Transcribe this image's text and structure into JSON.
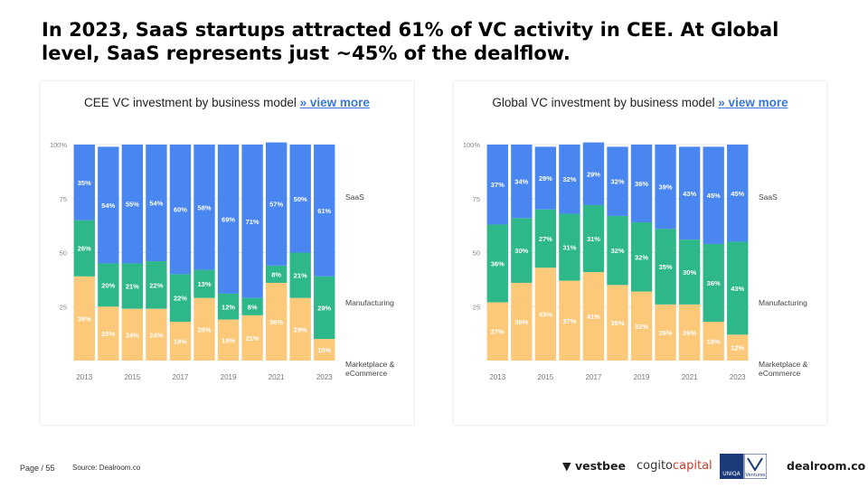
{
  "headline": "In 2023, SaaS startups attracted 61% of VC activity in CEE. At Global level, SaaS represents just ~45% of the dealflow.",
  "colors": {
    "saas": "#4a86f0",
    "manufacturing": "#2eb88a",
    "marketplace": "#fcc97a",
    "link": "#3a78d8"
  },
  "chart_data": [
    {
      "type": "bar",
      "stacked": true,
      "title": "CEE VC investment by business model",
      "link_text": "» view more",
      "categories": [
        "2013",
        "2014",
        "2015",
        "2016",
        "2017",
        "2018",
        "2019",
        "2020",
        "2021",
        "2022",
        "2023"
      ],
      "tick_labels": [
        "2013",
        "",
        "2015",
        "",
        "2017",
        "",
        "2019",
        "",
        "2021",
        "",
        "2023"
      ],
      "y_ticks": [
        "100%",
        "75",
        "50",
        "25"
      ],
      "ylim": [
        0,
        100
      ],
      "series": [
        {
          "name": "Marketplace & eCommerce",
          "values": [
            39,
            25,
            24,
            24,
            18,
            29,
            19,
            21,
            36,
            29,
            10
          ]
        },
        {
          "name": "Manufacturing",
          "values": [
            26,
            20,
            21,
            22,
            22,
            13,
            12,
            8,
            8,
            21,
            29
          ]
        },
        {
          "name": "SaaS",
          "values": [
            35,
            54,
            55,
            54,
            60,
            58,
            69,
            71,
            57,
            50,
            61
          ]
        }
      ],
      "legend": [
        "SaaS",
        "Manufacturing",
        "Marketplace &",
        "eCommerce"
      ]
    },
    {
      "type": "bar",
      "stacked": true,
      "title": "Global VC investment by business model",
      "link_text": "» view more",
      "categories": [
        "2013",
        "2014",
        "2015",
        "2016",
        "2017",
        "2018",
        "2019",
        "2020",
        "2021",
        "2022",
        "2023"
      ],
      "tick_labels": [
        "2013",
        "",
        "2015",
        "",
        "2017",
        "",
        "2019",
        "",
        "2021",
        "",
        "2023"
      ],
      "y_ticks": [
        "100%",
        "75",
        "50",
        "25"
      ],
      "ylim": [
        0,
        100
      ],
      "series": [
        {
          "name": "Marketplace & eCommerce",
          "values": [
            27,
            36,
            43,
            37,
            41,
            35,
            32,
            26,
            26,
            18,
            12
          ]
        },
        {
          "name": "Manufacturing",
          "values": [
            36,
            30,
            27,
            31,
            31,
            32,
            32,
            35,
            30,
            36,
            43
          ]
        },
        {
          "name": "SaaS",
          "values": [
            37,
            34,
            29,
            32,
            29,
            32,
            36,
            39,
            43,
            45,
            45
          ]
        }
      ],
      "legend": [
        "SaaS",
        "Manufacturing",
        "Marketplace &",
        "eCommerce"
      ]
    }
  ],
  "footer": {
    "page": "Page / 55",
    "source": "Source: Dealroom.co"
  },
  "logos": {
    "vestbee": "vestbee",
    "cogito_main": "cogito",
    "cogito_accent": "capital",
    "uniqa": "UNIQA",
    "uniqa_sub": "Ventures",
    "dealroom": "dealroom.co"
  }
}
